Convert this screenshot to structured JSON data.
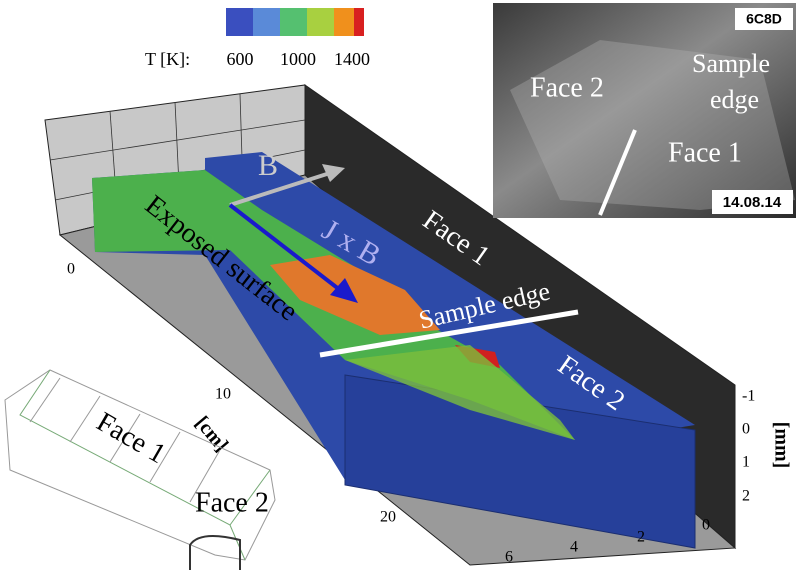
{
  "colorbar": {
    "label": "T [K]:",
    "ticks": [
      "600",
      "1000",
      "1400"
    ]
  },
  "annotations": {
    "field": "B",
    "force": "J x B",
    "exposed": "Exposed surface",
    "face1": "Face 1",
    "edge": "Sample edge",
    "face2": "Face 2"
  },
  "axes": {
    "cm_ticks": [
      "0",
      "10",
      "20"
    ],
    "cm_label": "[cm]",
    "mm_ticks": [
      "-1",
      "0",
      "1",
      "2"
    ],
    "mm_label": "[mm]",
    "width_ticks": [
      "6",
      "4",
      "2",
      "0"
    ]
  },
  "photo": {
    "id": "6C8D",
    "face2": "Face 2",
    "sample": "Sample",
    "edge": "edge",
    "face1": "Face 1",
    "date": "14.08.14"
  },
  "sketch": {
    "face1": "Face 1",
    "face2": "Face 2"
  }
}
